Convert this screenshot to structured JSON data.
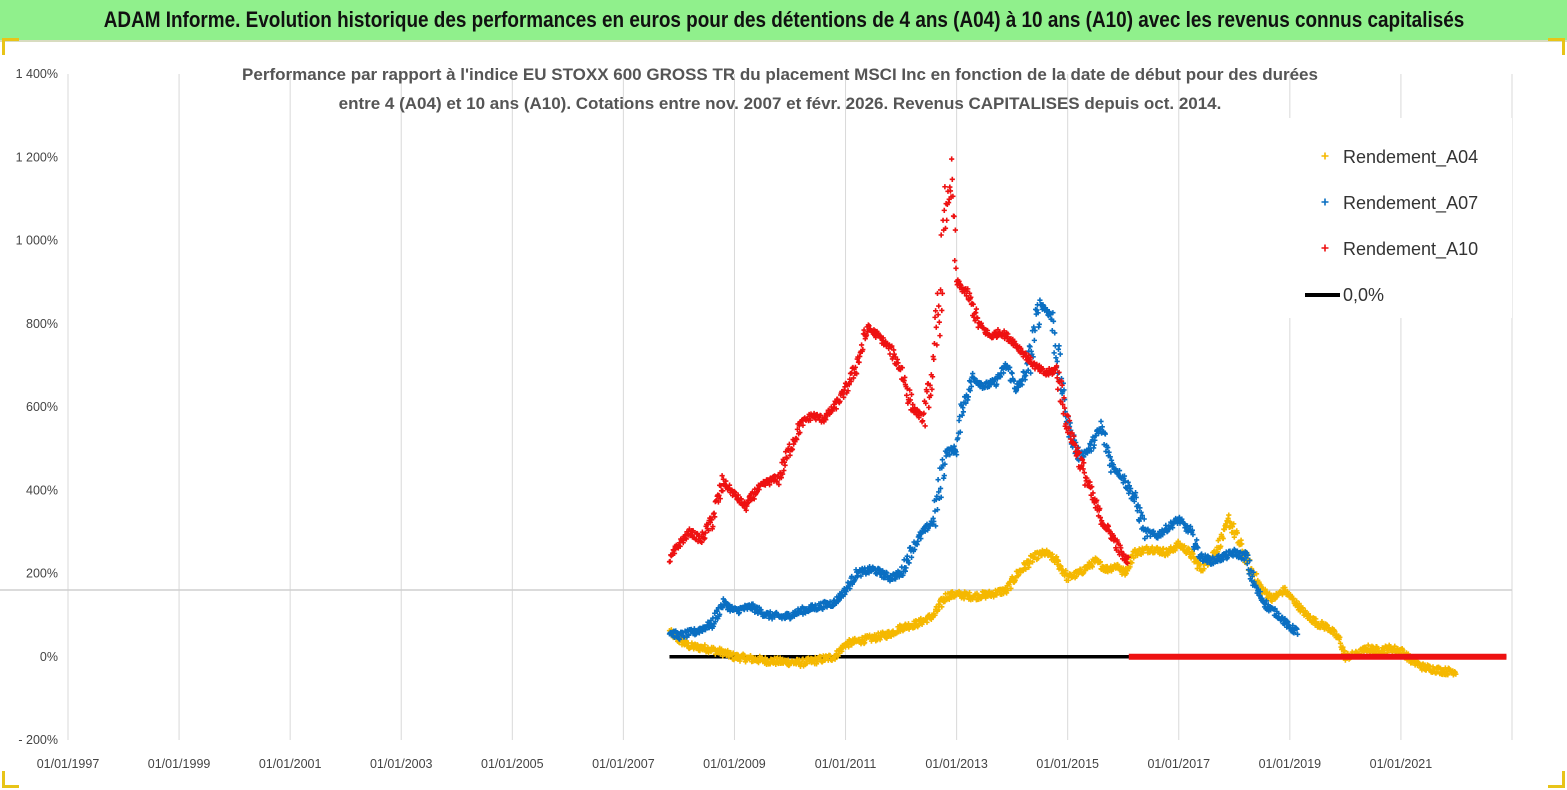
{
  "header": {
    "title": "ADAM Informe. Evolution historique des performances en euros pour des détentions de 4 ans (A04) à 10 ans (A10) avec les revenus connus capitalisés"
  },
  "colors": {
    "header_bg": "#90f08c",
    "a04": "#f5b800",
    "a07": "#0a6fc2",
    "a10": "#ee1111",
    "zero": "#000000",
    "grid": "#d9d9d9"
  },
  "chart_data": {
    "type": "scatter",
    "title_lines": [
      "Performance par rapport à l'indice EU STOXX 600 GROSS TR  du placement MSCI Inc en fonction de la date de début pour des durées",
      "entre 4 (A04) et 10 ans (A10). Cotations entre nov. 2007 et févr. 2026. Revenus CAPITALISES depuis oct. 2014."
    ],
    "x_axis": {
      "type": "date",
      "range": [
        "1997-01-01",
        "2022-12-31"
      ],
      "tick_labels": [
        "01/01/1997",
        "01/01/1999",
        "01/01/2001",
        "01/01/2003",
        "01/01/2005",
        "01/01/2007",
        "01/01/2009",
        "01/01/2011",
        "01/01/2013",
        "01/01/2015",
        "01/01/2017",
        "01/01/2019",
        "01/01/2021"
      ],
      "tick_years": [
        1997,
        1999,
        2001,
        2003,
        2005,
        2007,
        2009,
        2011,
        2013,
        2015,
        2017,
        2019,
        2021
      ]
    },
    "y_axis": {
      "range": [
        -200,
        1400
      ],
      "unit": "%",
      "tick_values": [
        -200,
        0,
        200,
        400,
        600,
        800,
        1000,
        1200,
        1400
      ],
      "tick_labels": [
        "- 200%",
        "0%",
        "200%",
        "400%",
        "600%",
        "800%",
        "1 000%",
        "1 200%",
        "1 400%"
      ]
    },
    "grid": "vertical",
    "legend_position": "top-right",
    "series": [
      {
        "name": "Rendement_A04",
        "color": "#f5b800",
        "marker": "+",
        "points": [
          [
            2007.83,
            60
          ],
          [
            2008.0,
            40
          ],
          [
            2008.2,
            25
          ],
          [
            2008.5,
            20
          ],
          [
            2008.8,
            10
          ],
          [
            2009.0,
            0
          ],
          [
            2009.3,
            -5
          ],
          [
            2009.6,
            -10
          ],
          [
            2009.9,
            -12
          ],
          [
            2010.2,
            -15
          ],
          [
            2010.5,
            -8
          ],
          [
            2010.8,
            0
          ],
          [
            2011.0,
            30
          ],
          [
            2011.3,
            40
          ],
          [
            2011.5,
            45
          ],
          [
            2011.8,
            55
          ],
          [
            2012.0,
            70
          ],
          [
            2012.3,
            80
          ],
          [
            2012.6,
            100
          ],
          [
            2012.8,
            145
          ],
          [
            2013.0,
            150
          ],
          [
            2013.3,
            145
          ],
          [
            2013.6,
            150
          ],
          [
            2013.9,
            160
          ],
          [
            2014.1,
            200
          ],
          [
            2014.4,
            240
          ],
          [
            2014.6,
            250
          ],
          [
            2014.8,
            230
          ],
          [
            2015.0,
            190
          ],
          [
            2015.2,
            200
          ],
          [
            2015.5,
            230
          ],
          [
            2015.7,
            210
          ],
          [
            2015.9,
            220
          ],
          [
            2016.0,
            200
          ],
          [
            2016.2,
            250
          ],
          [
            2016.5,
            260
          ],
          [
            2016.8,
            250
          ],
          [
            2017.0,
            270
          ],
          [
            2017.2,
            250
          ],
          [
            2017.4,
            210
          ],
          [
            2017.6,
            240
          ],
          [
            2017.8,
            290
          ],
          [
            2017.9,
            330
          ],
          [
            2018.1,
            270
          ],
          [
            2018.3,
            210
          ],
          [
            2018.5,
            160
          ],
          [
            2018.7,
            140
          ],
          [
            2018.9,
            160
          ],
          [
            2019.1,
            130
          ],
          [
            2019.3,
            100
          ],
          [
            2019.5,
            80
          ],
          [
            2019.7,
            70
          ],
          [
            2019.9,
            40
          ],
          [
            2020.0,
            0
          ],
          [
            2020.2,
            5
          ],
          [
            2020.4,
            20
          ],
          [
            2020.6,
            15
          ],
          [
            2020.8,
            20
          ],
          [
            2021.0,
            15
          ],
          [
            2021.2,
            -10
          ],
          [
            2021.4,
            -25
          ],
          [
            2021.6,
            -30
          ],
          [
            2021.8,
            -35
          ],
          [
            2022.0,
            -35
          ]
        ]
      },
      {
        "name": "Rendement_A07",
        "color": "#0a6fc2",
        "marker": "+",
        "points": [
          [
            2007.83,
            60
          ],
          [
            2008.0,
            50
          ],
          [
            2008.3,
            60
          ],
          [
            2008.6,
            80
          ],
          [
            2008.8,
            130
          ],
          [
            2009.0,
            110
          ],
          [
            2009.3,
            120
          ],
          [
            2009.6,
            100
          ],
          [
            2009.9,
            95
          ],
          [
            2010.2,
            110
          ],
          [
            2010.5,
            120
          ],
          [
            2010.8,
            130
          ],
          [
            2011.0,
            160
          ],
          [
            2011.2,
            200
          ],
          [
            2011.5,
            210
          ],
          [
            2011.8,
            190
          ],
          [
            2012.0,
            200
          ],
          [
            2012.2,
            260
          ],
          [
            2012.4,
            300
          ],
          [
            2012.6,
            330
          ],
          [
            2012.8,
            490
          ],
          [
            2013.0,
            500
          ],
          [
            2013.1,
            600
          ],
          [
            2013.3,
            670
          ],
          [
            2013.5,
            650
          ],
          [
            2013.7,
            660
          ],
          [
            2013.9,
            700
          ],
          [
            2014.1,
            640
          ],
          [
            2014.3,
            700
          ],
          [
            2014.5,
            850
          ],
          [
            2014.7,
            820
          ],
          [
            2014.9,
            650
          ],
          [
            2015.0,
            560
          ],
          [
            2015.2,
            480
          ],
          [
            2015.4,
            500
          ],
          [
            2015.6,
            550
          ],
          [
            2015.8,
            460
          ],
          [
            2016.0,
            430
          ],
          [
            2016.2,
            380
          ],
          [
            2016.4,
            300
          ],
          [
            2016.6,
            290
          ],
          [
            2016.8,
            310
          ],
          [
            2017.0,
            330
          ],
          [
            2017.2,
            300
          ],
          [
            2017.4,
            240
          ],
          [
            2017.6,
            230
          ],
          [
            2017.8,
            240
          ],
          [
            2018.0,
            250
          ],
          [
            2018.2,
            240
          ],
          [
            2018.4,
            160
          ],
          [
            2018.6,
            120
          ],
          [
            2018.8,
            100
          ],
          [
            2019.0,
            70
          ],
          [
            2019.15,
            60
          ]
        ]
      },
      {
        "name": "Rendement_A10",
        "color": "#ee1111",
        "marker": "+",
        "points": [
          [
            2007.83,
            230
          ],
          [
            2008.0,
            270
          ],
          [
            2008.2,
            300
          ],
          [
            2008.4,
            280
          ],
          [
            2008.6,
            330
          ],
          [
            2008.8,
            420
          ],
          [
            2009.0,
            390
          ],
          [
            2009.2,
            360
          ],
          [
            2009.4,
            400
          ],
          [
            2009.6,
            420
          ],
          [
            2009.8,
            430
          ],
          [
            2010.0,
            500
          ],
          [
            2010.2,
            560
          ],
          [
            2010.4,
            580
          ],
          [
            2010.6,
            570
          ],
          [
            2010.8,
            600
          ],
          [
            2011.0,
            640
          ],
          [
            2011.2,
            700
          ],
          [
            2011.4,
            790
          ],
          [
            2011.6,
            770
          ],
          [
            2011.8,
            740
          ],
          [
            2012.0,
            690
          ],
          [
            2012.2,
            600
          ],
          [
            2012.4,
            570
          ],
          [
            2012.6,
            700
          ],
          [
            2012.8,
            1050
          ],
          [
            2012.9,
            1150
          ],
          [
            2013.0,
            900
          ],
          [
            2013.2,
            870
          ],
          [
            2013.4,
            800
          ],
          [
            2013.6,
            770
          ],
          [
            2013.8,
            780
          ],
          [
            2014.0,
            760
          ],
          [
            2014.2,
            730
          ],
          [
            2014.4,
            700
          ],
          [
            2014.6,
            680
          ],
          [
            2014.8,
            690
          ],
          [
            2015.0,
            560
          ],
          [
            2015.2,
            480
          ],
          [
            2015.4,
            400
          ],
          [
            2015.6,
            330
          ],
          [
            2015.8,
            290
          ],
          [
            2016.0,
            240
          ],
          [
            2016.1,
            230
          ]
        ]
      },
      {
        "name": "0,0%",
        "color": "#000000",
        "type": "line",
        "x_range": [
          2007.83,
          2022.9
        ],
        "value": 0
      }
    ],
    "zero_line_overlay": {
      "color": "#ee1111",
      "x_range": [
        2016.1,
        2022.9
      ],
      "value": 0
    }
  }
}
